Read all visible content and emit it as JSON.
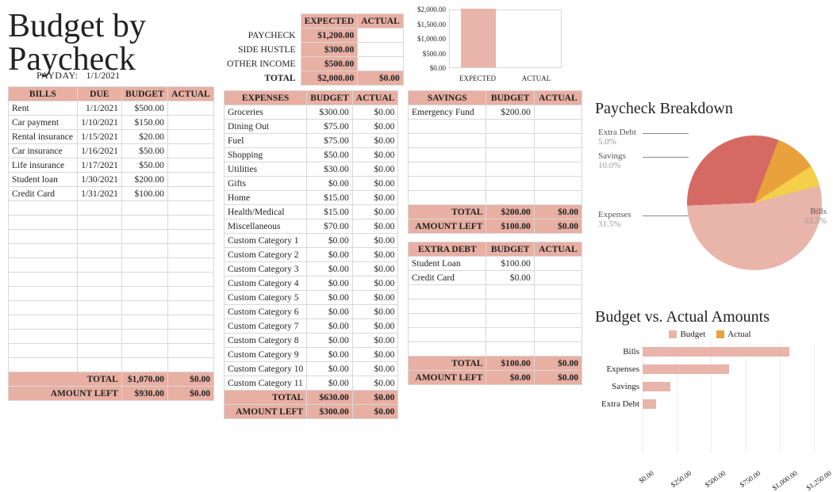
{
  "title": "Budget by Paycheck",
  "payday": {
    "label": "PAYDAY:",
    "date": "1/1/2021"
  },
  "income": {
    "col_headers": [
      "EXPECTED",
      "ACTUAL"
    ],
    "rows": [
      {
        "label": "PAYCHECK",
        "expected": "$1,200.00",
        "actual": ""
      },
      {
        "label": "SIDE HUSTLE",
        "expected": "$300.00",
        "actual": ""
      },
      {
        "label": "OTHER INCOME",
        "expected": "$500.00",
        "actual": ""
      },
      {
        "label": "TOTAL",
        "expected": "$2,000.00",
        "actual": "$0.00"
      }
    ]
  },
  "mini_bar": {
    "yticks": [
      "$2,000.00",
      "$1,500.00",
      "$1,000.00",
      "$500.00",
      "$0.00"
    ],
    "ymax": 2000,
    "bars": [
      {
        "label": "EXPECTED",
        "value": 2000,
        "color": "#e9b4a9"
      },
      {
        "label": "ACTUAL",
        "value": 0,
        "color": "#e9b4a9"
      }
    ]
  },
  "bills": {
    "headers": [
      "BILLS",
      "DUE",
      "BUDGET",
      "ACTUAL"
    ],
    "rows": [
      {
        "name": "Rent",
        "due": "1/1/2021",
        "budget": "$500.00",
        "actual": ""
      },
      {
        "name": "Car payment",
        "due": "1/10/2021",
        "budget": "$150.00",
        "actual": ""
      },
      {
        "name": "Rental insurance",
        "due": "1/15/2021",
        "budget": "$20.00",
        "actual": ""
      },
      {
        "name": "Car insurance",
        "due": "1/16/2021",
        "budget": "$50.00",
        "actual": ""
      },
      {
        "name": "Life insurance",
        "due": "1/17/2021",
        "budget": "$50.00",
        "actual": ""
      },
      {
        "name": "Student loan",
        "due": "1/30/2021",
        "budget": "$200.00",
        "actual": ""
      },
      {
        "name": "Credit Card",
        "due": "1/31/2021",
        "budget": "$100.00",
        "actual": ""
      }
    ],
    "blank_rows": 12,
    "total": {
      "label": "TOTAL",
      "budget": "$1,070.00",
      "actual": "$0.00"
    },
    "left": {
      "label": "AMOUNT LEFT",
      "budget": "$930.00",
      "actual": "$0.00"
    }
  },
  "expenses": {
    "headers": [
      "EXPENSES",
      "BUDGET",
      "ACTUAL"
    ],
    "rows": [
      {
        "name": "Groceries",
        "budget": "$300.00",
        "actual": "$0.00"
      },
      {
        "name": "Dining Out",
        "budget": "$75.00",
        "actual": "$0.00"
      },
      {
        "name": "Fuel",
        "budget": "$75.00",
        "actual": "$0.00"
      },
      {
        "name": "Shopping",
        "budget": "$50.00",
        "actual": "$0.00"
      },
      {
        "name": "Utilities",
        "budget": "$30.00",
        "actual": "$0.00"
      },
      {
        "name": "Gifts",
        "budget": "$0.00",
        "actual": "$0.00"
      },
      {
        "name": "Home",
        "budget": "$15.00",
        "actual": "$0.00"
      },
      {
        "name": "Health/Medical",
        "budget": "$15.00",
        "actual": "$0.00"
      },
      {
        "name": "Miscellaneous",
        "budget": "$70.00",
        "actual": "$0.00"
      },
      {
        "name": "Custom Category 1",
        "budget": "$0.00",
        "actual": "$0.00"
      },
      {
        "name": "Custom Category 2",
        "budget": "$0.00",
        "actual": "$0.00"
      },
      {
        "name": "Custom Category 3",
        "budget": "$0.00",
        "actual": "$0.00"
      },
      {
        "name": "Custom Category 4",
        "budget": "$0.00",
        "actual": "$0.00"
      },
      {
        "name": "Custom Category 5",
        "budget": "$0.00",
        "actual": "$0.00"
      },
      {
        "name": "Custom Category 6",
        "budget": "$0.00",
        "actual": "$0.00"
      },
      {
        "name": "Custom Category 7",
        "budget": "$0.00",
        "actual": "$0.00"
      },
      {
        "name": "Custom Category 8",
        "budget": "$0.00",
        "actual": "$0.00"
      },
      {
        "name": "Custom Category 9",
        "budget": "$0.00",
        "actual": "$0.00"
      },
      {
        "name": "Custom Category 10",
        "budget": "$0.00",
        "actual": "$0.00"
      },
      {
        "name": "Custom Category 11",
        "budget": "$0.00",
        "actual": "$0.00"
      }
    ],
    "total": {
      "label": "TOTAL",
      "budget": "$630.00",
      "actual": "$0.00"
    },
    "left": {
      "label": "AMOUNT LEFT",
      "budget": "$300.00",
      "actual": "$0.00"
    }
  },
  "savings": {
    "headers": [
      "SAVINGS",
      "BUDGET",
      "ACTUAL"
    ],
    "rows": [
      {
        "name": "Emergency Fund",
        "budget": "$200.00",
        "actual": ""
      }
    ],
    "blank_rows": 6,
    "total": {
      "label": "TOTAL",
      "budget": "$200.00",
      "actual": "$0.00"
    },
    "left": {
      "label": "AMOUNT LEFT",
      "budget": "$100.00",
      "actual": "$0.00"
    }
  },
  "extra_debt": {
    "headers": [
      "EXTRA DEBT",
      "BUDGET",
      "ACTUAL"
    ],
    "rows": [
      {
        "name": "Student Loan",
        "budget": "$100.00",
        "actual": ""
      },
      {
        "name": "Credit Card",
        "budget": "$0.00",
        "actual": ""
      }
    ],
    "blank_rows": 5,
    "total": {
      "label": "TOTAL",
      "budget": "$100.00",
      "actual": "$0.00"
    },
    "left": {
      "label": "AMOUNT LEFT",
      "budget": "$0.00",
      "actual": "$0.00"
    }
  },
  "pie": {
    "title": "Paycheck Breakdown",
    "slices": [
      {
        "label": "Bills",
        "pct": 53.5,
        "pct_label": "53.5%",
        "color": "#e9b4a9"
      },
      {
        "label": "Expenses",
        "pct": 31.5,
        "pct_label": "31.5%",
        "color": "#d46a63"
      },
      {
        "label": "Savings",
        "pct": 10.0,
        "pct_label": "10.0%",
        "color": "#e9a23b"
      },
      {
        "label": "Extra Debt",
        "pct": 5.0,
        "pct_label": "5.0%",
        "color": "#f3cf4a"
      }
    ]
  },
  "hbar": {
    "title": "Budget vs. Actual Amounts",
    "legend": [
      {
        "label": "Budget",
        "color": "#e9b4a9"
      },
      {
        "label": "Actual",
        "color": "#e9a23b"
      }
    ],
    "xmax": 1250,
    "xticks": [
      "$0.00",
      "$250.00",
      "$500.00",
      "$750.00",
      "$1,000.00",
      "$1,250.00"
    ],
    "rows": [
      {
        "label": "Bills",
        "budget": 1070,
        "actual": 0
      },
      {
        "label": "Expenses",
        "budget": 630,
        "actual": 0
      },
      {
        "label": "Savings",
        "budget": 200,
        "actual": 0
      },
      {
        "label": "Extra Debt",
        "budget": 100,
        "actual": 0
      }
    ]
  },
  "colors": {
    "header_bg": "#e8afa3",
    "accent": "#e9b4a9",
    "grid": "#d8d8d8"
  }
}
